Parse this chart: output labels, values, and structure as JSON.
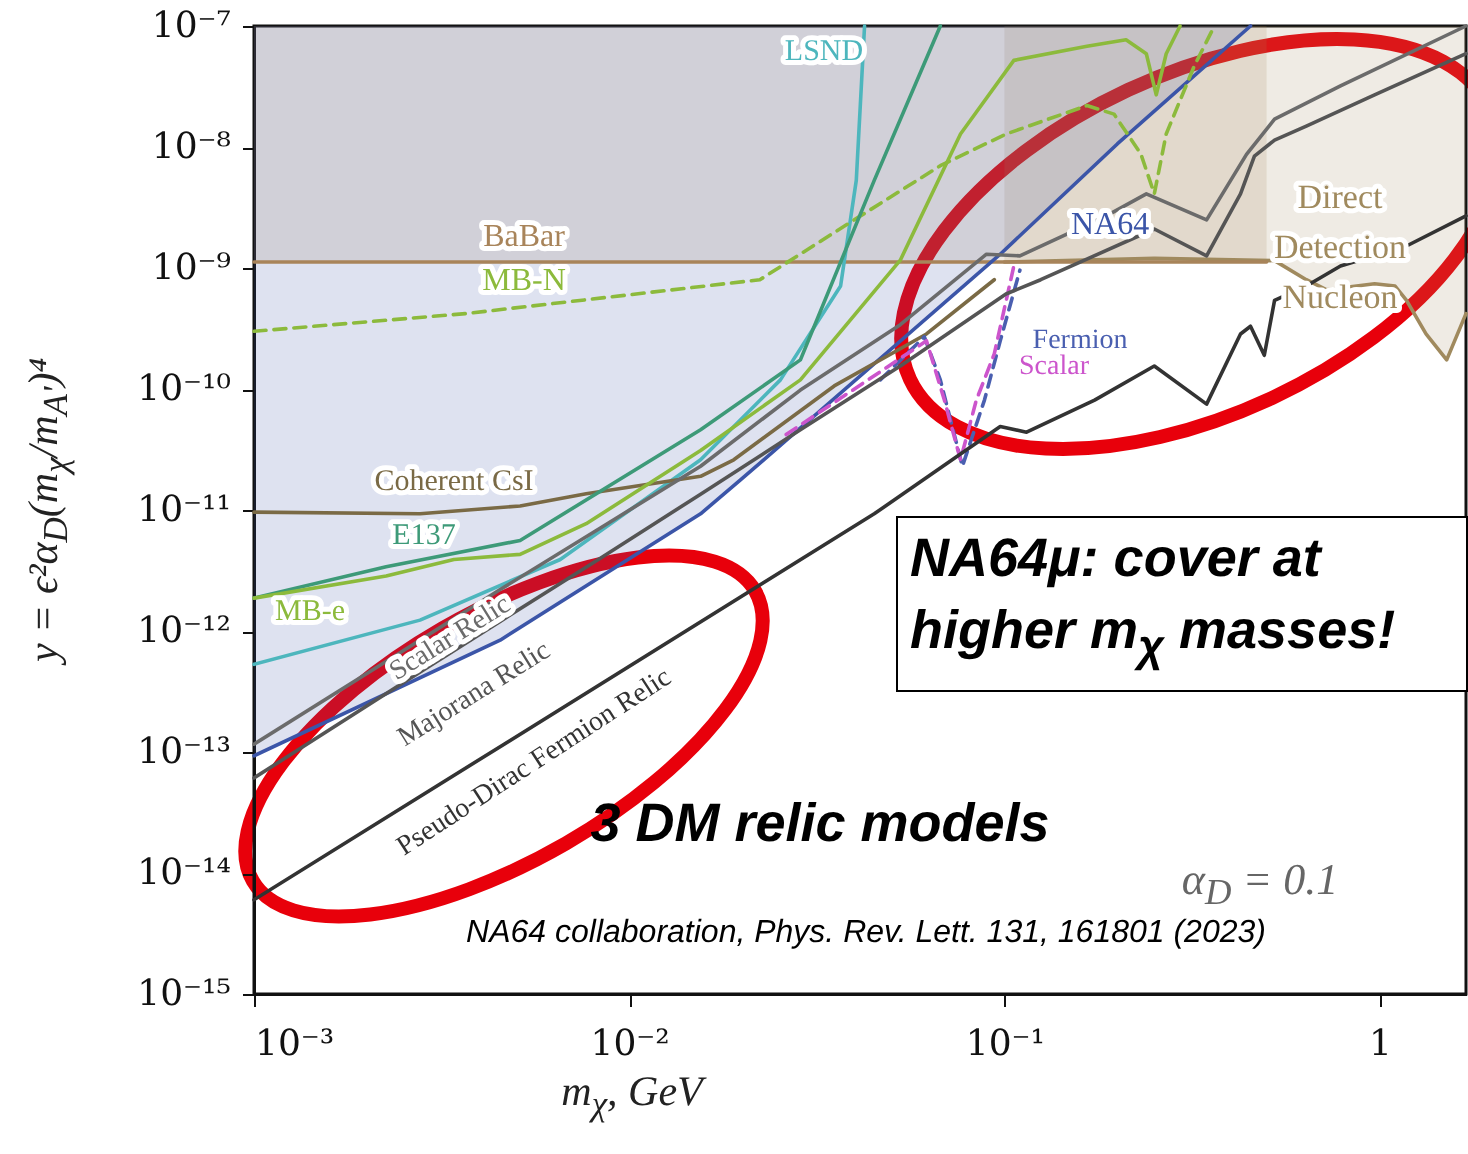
{
  "chart_data": {
    "type": "line",
    "xlabel": "m$_{χ}$, GeV",
    "ylabel": "y = ϵ²α$_{D}$(m$_{χ}$/m$_{A'}$)⁴",
    "log": "xy",
    "xlim": [
      0.001,
      1.7
    ],
    "ylim": [
      1e-15,
      1e-07
    ],
    "xticks": [
      {
        "value": 0.001,
        "label": "10⁻³"
      },
      {
        "value": 0.01,
        "label": "10⁻²"
      },
      {
        "value": 0.1,
        "label": "10⁻¹"
      },
      1
    ],
    "yticks": [
      {
        "value": 1e-15,
        "label": "10⁻¹⁵"
      },
      {
        "value": 1e-14,
        "label": "10⁻¹⁴"
      },
      {
        "value": 1e-13,
        "label": "10⁻¹³"
      },
      {
        "value": 1e-12,
        "label": "10⁻¹²"
      },
      {
        "value": 1e-11,
        "label": "10⁻¹¹"
      },
      {
        "value": 1e-10,
        "label": "10⁻¹⁰"
      },
      {
        "value": 1e-09,
        "label": "10⁻⁹"
      },
      {
        "value": 1e-08,
        "label": "10⁻⁸"
      },
      {
        "value": 1e-07,
        "label": "10⁻⁷"
      }
    ],
    "series": [
      {
        "name": "Direct Detection Nucleon",
        "color": "#a08a5e",
        "x": [
          0.1,
          0.251,
          0.525,
          0.638,
          0.723,
          0.97,
          1.1,
          1.18,
          1.33,
          1.51,
          1.7
        ],
        "values": [
          1.12e-09,
          1.2e-09,
          1.15e-09,
          8e-10,
          6.6e-10,
          7.4e-10,
          7.1e-10,
          5.4e-10,
          2.85e-10,
          1.74e-10,
          4.2e-10
        ],
        "lower": [
          1.12e-09,
          1.2e-09,
          1.15e-09,
          8e-10,
          6.6e-10,
          7.4e-10,
          7.1e-10,
          5.4e-10,
          2.85e-10,
          1.74e-10,
          4.2e-10
        ],
        "upper": [
          1e-07,
          1e-07,
          1e-07,
          1e-07,
          1e-07,
          1e-07,
          1e-07,
          1e-07,
          1e-07,
          1e-07,
          1e-07
        ]
      },
      {
        "name": "BaBar",
        "color": "#a8845a",
        "x": [
          0.001,
          0.1,
          0.5
        ],
        "values": [
          1.12e-09,
          1.12e-09,
          1.12e-09
        ],
        "lower": [
          1.12e-09,
          1.12e-09,
          1.12e-09
        ],
        "upper": [
          1e-07,
          1e-07,
          1e-07
        ]
      },
      {
        "name": "NA64",
        "color": "#3b55a8",
        "x": [
          0.001,
          0.00453,
          0.0155,
          0.0198,
          0.0975,
          0.2,
          0.453
        ],
        "values": [
          9.3e-14,
          8.4e-13,
          9.3e-12,
          1.77e-11,
          1.3e-09,
          1.06e-08,
          1e-07
        ],
        "lower": [
          9.3e-14,
          8.4e-13,
          9.3e-12,
          1.77e-11,
          1.3e-09,
          1.06e-08,
          1e-07
        ],
        "upper": [
          1e-07,
          1e-07,
          1e-07,
          1e-07,
          1e-07,
          1e-07,
          1e-07
        ]
      },
      {
        "name": "LSND",
        "color": "#4db6bd",
        "x": [
          0.001,
          0.00277,
          0.00655,
          0.0155,
          0.0253,
          0.0366,
          0.0403,
          0.0424
        ],
        "values": [
          5.3e-13,
          1.23e-12,
          3.9e-12,
          2.6e-11,
          1.19e-10,
          7.1e-10,
          5.3e-09,
          1e-07
        ]
      },
      {
        "name": "MB-N",
        "color": "#8cba3c",
        "line_style": "dashed",
        "x": [
          0.001,
          0.00367,
          0.0223,
          0.0398,
          0.0675,
          0.101,
          0.166,
          0.196,
          0.231,
          0.251,
          0.27,
          0.321,
          0.363
        ],
        "values": [
          3e-10,
          4.2e-10,
          8e-10,
          2.5e-09,
          7e-09,
          1.28e-08,
          2.2e-08,
          1.87e-08,
          8.8e-09,
          4.1e-09,
          1.28e-08,
          4.7e-08,
          1e-07
        ]
      },
      {
        "name": "Coherent CsI",
        "color": "#7a6a45",
        "x": [
          0.001,
          0.00277,
          0.00512,
          0.00768,
          0.0155,
          0.019,
          0.0352,
          0.062,
          0.094
        ],
        "values": [
          9.6e-12,
          9.3e-12,
          1.08e-11,
          1.36e-11,
          1.9e-11,
          2.6e-11,
          1.06e-10,
          2.85e-10,
          8e-10
        ]
      },
      {
        "name": "E137",
        "color": "#3d9a78",
        "x": [
          0.001,
          0.00225,
          0.00512,
          0.0155,
          0.0286,
          0.045,
          0.0675
        ],
        "values": [
          1.87e-12,
          3.4e-12,
          5.6e-12,
          4.6e-11,
          1.74e-10,
          5.3e-09,
          1e-07
        ]
      },
      {
        "name": "MB-e",
        "color": "#8cba3c",
        "x": [
          0.001,
          0.00225,
          0.00341,
          0.00512,
          0.00768,
          0.0155,
          0.0286,
          0.0528,
          0.0764,
          0.106,
          0.166,
          0.211,
          0.239,
          0.254,
          0.27,
          0.294
        ],
        "values": [
          1.87e-12,
          2.85e-12,
          3.9e-12,
          4.3e-12,
          7.7e-12,
          3.1e-11,
          1.19e-10,
          1.16e-09,
          1.28e-08,
          5.2e-08,
          6.8e-08,
          7.7e-08,
          5.9e-08,
          2.7e-08,
          5.9e-08,
          1e-07
        ]
      },
      {
        "name": "Fermion",
        "color": "#4a5fb0",
        "line_style": "dashed",
        "x": [
          0.0467,
          0.0612,
          0.0675,
          0.0773,
          0.0885,
          0.0975,
          0.11
        ],
        "values": [
          1.19e-10,
          2.7e-10,
          1.19e-10,
          2.3e-11,
          8.1e-11,
          2.5e-10,
          9.6e-10
        ]
      },
      {
        "name": "Scalar",
        "color": "#cc55cc",
        "line_style": "dashed",
        "x": [
          0.0262,
          0.062,
          0.0692,
          0.0764,
          0.0842,
          0.094,
          0.106
        ],
        "values": [
          4.2e-11,
          2.5e-10,
          8.1e-11,
          2.6e-11,
          8.1e-11,
          1.95e-10,
          1.04e-09
        ]
      },
      {
        "name": "Scalar Relic",
        "color": "#6b6b6b",
        "x": [
          0.001,
          0.00245,
          0.00453,
          0.00838,
          0.0155,
          0.0286,
          0.0528,
          0.0896,
          0.11,
          0.187,
          0.239,
          0.346,
          0.442,
          0.525,
          0.787,
          1.7
        ],
        "values": [
          1.16e-13,
          6.6e-13,
          2.2e-12,
          7.1e-12,
          2.3e-11,
          9.8e-11,
          3.4e-10,
          1.3e-09,
          1.26e-09,
          2.7e-09,
          4.1e-09,
          2.5e-09,
          8.7e-09,
          1.7e-08,
          3.2e-08,
          1e-07
        ]
      },
      {
        "name": "Majorana Relic",
        "color": "#555555",
        "x": [
          0.001,
          0.00245,
          0.00453,
          0.00838,
          0.0155,
          0.0286,
          0.0528,
          0.101,
          0.125,
          0.251,
          0.346,
          0.426,
          0.464,
          0.525,
          0.638,
          0.97,
          1.7
        ],
        "values": [
          6.1e-14,
          3.6e-13,
          1.2e-12,
          4e-12,
          1.35e-11,
          4.6e-11,
          1.55e-10,
          6.1e-10,
          8e-10,
          2.1e-09,
          1.26e-09,
          4.1e-09,
          8.4e-09,
          1.14e-08,
          1.49e-08,
          2.7e-08,
          5.9e-08
        ]
      },
      {
        "name": "Pseudo-Dirac Fermion Relic",
        "color": "#333333",
        "x": [
          0.001,
          0.045,
          0.0764,
          0.0975,
          0.1146,
          0.174,
          0.251,
          0.346,
          0.426,
          0.453,
          0.493,
          0.525,
          0.638,
          0.787,
          1.18,
          1.7
        ],
        "values": [
          6e-15,
          9.3e-12,
          2.9e-11,
          4.9e-11,
          4.4e-11,
          8.1e-11,
          1.55e-10,
          7.5e-11,
          2.85e-10,
          3.3e-10,
          1.9e-10,
          5.4e-10,
          7.1e-10,
          1.04e-09,
          1.52e-09,
          2.7e-09
        ]
      }
    ],
    "annotations": [
      "NA64μ: cover at higher m$_{χ}$ masses!",
      "3 DM relic models",
      "α$_{D}$ = 0.1",
      "NA64 collaboration, Phys. Rev. Lett. 131, 161801 (2023)"
    ]
  }
}
